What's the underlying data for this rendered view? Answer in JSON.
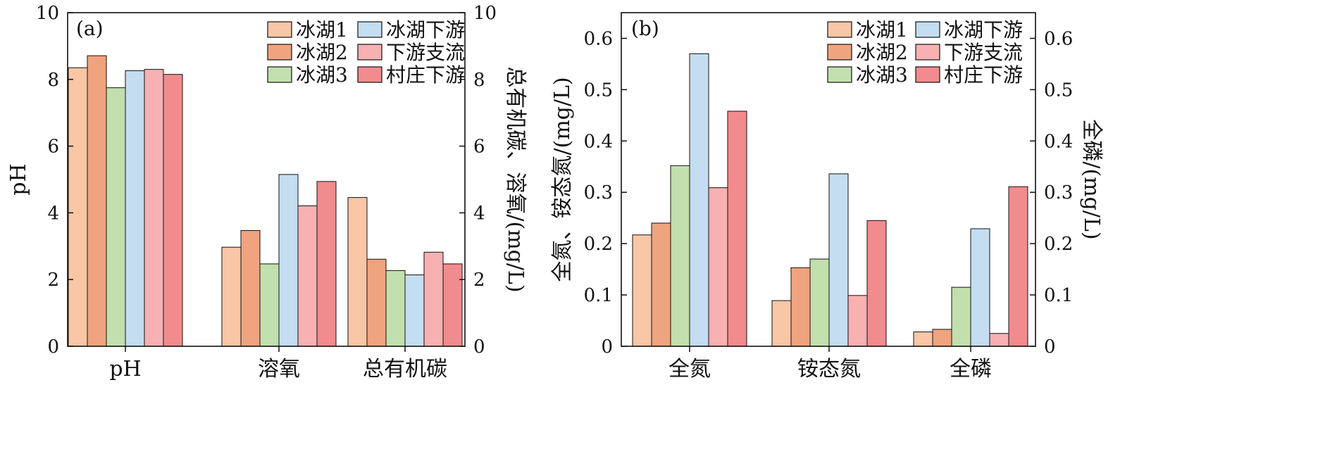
{
  "series_colors": [
    "#f9c6a6",
    "#efa47f",
    "#c2dfae",
    "#c4ddf1",
    "#f8b1b2",
    "#f28b8d"
  ],
  "chart_data": [
    {
      "type": "bar",
      "panel_label": "(a)",
      "categories": [
        "pH",
        "溶氧",
        "总有机碳"
      ],
      "series": [
        {
          "name": "冰湖1",
          "values": [
            8.35,
            2.97,
            4.46
          ]
        },
        {
          "name": "冰湖2",
          "values": [
            8.71,
            3.47,
            2.61
          ]
        },
        {
          "name": "冰湖3",
          "values": [
            7.75,
            2.47,
            2.27
          ]
        },
        {
          "name": "冰湖下游",
          "values": [
            8.26,
            5.15,
            2.14
          ]
        },
        {
          "name": "下游支流",
          "values": [
            8.3,
            4.21,
            2.82
          ]
        },
        {
          "name": "村庄下游",
          "values": [
            8.15,
            4.94,
            2.47
          ]
        }
      ],
      "ylabel": "pH",
      "ylabel_right": "总有机碳、溶氧/(mg/L)",
      "ylim": [
        0,
        10
      ],
      "y_ticks": [
        0,
        2,
        4,
        6,
        8,
        10
      ],
      "y_tick_labels": [
        "0",
        "2",
        "4",
        "6",
        "8",
        "10"
      ],
      "y2lim": [
        0,
        10
      ],
      "y2_ticks": [
        0,
        2,
        4,
        6,
        8,
        10
      ],
      "y2_tick_labels": [
        "0",
        "2",
        "4",
        "6",
        "8",
        "10"
      ],
      "grid": false,
      "legend_position": "top-right"
    },
    {
      "type": "bar",
      "panel_label": "(b)",
      "categories": [
        "全氮",
        "铵态氮",
        "全磷"
      ],
      "series": [
        {
          "name": "冰湖1",
          "values": [
            0.217,
            0.089,
            0.028
          ]
        },
        {
          "name": "冰湖2",
          "values": [
            0.24,
            0.153,
            0.033
          ]
        },
        {
          "name": "冰湖3",
          "values": [
            0.352,
            0.17,
            0.115
          ]
        },
        {
          "name": "冰湖下游",
          "values": [
            0.57,
            0.336,
            0.229
          ]
        },
        {
          "name": "下游支流",
          "values": [
            0.309,
            0.099,
            0.025
          ]
        },
        {
          "name": "村庄下游",
          "values": [
            0.458,
            0.245,
            0.311
          ]
        }
      ],
      "ylabel": "全氮、铵态氮/(mg/L)",
      "ylabel_right": "全磷/(mg/L)",
      "ylim": [
        0,
        0.65
      ],
      "y_ticks": [
        0,
        0.1,
        0.2,
        0.3,
        0.4,
        0.5,
        0.6
      ],
      "y_tick_labels": [
        "0",
        "0.1",
        "0.2",
        "0.3",
        "0.4",
        "0.5",
        "0.6"
      ],
      "y2lim": [
        0,
        0.65
      ],
      "y2_ticks": [
        0,
        0.1,
        0.2,
        0.3,
        0.4,
        0.5,
        0.6
      ],
      "y2_tick_labels": [
        "0",
        "0.1",
        "0.2",
        "0.3",
        "0.4",
        "0.5",
        "0.6"
      ],
      "grid": false,
      "legend_position": "top-right"
    }
  ]
}
